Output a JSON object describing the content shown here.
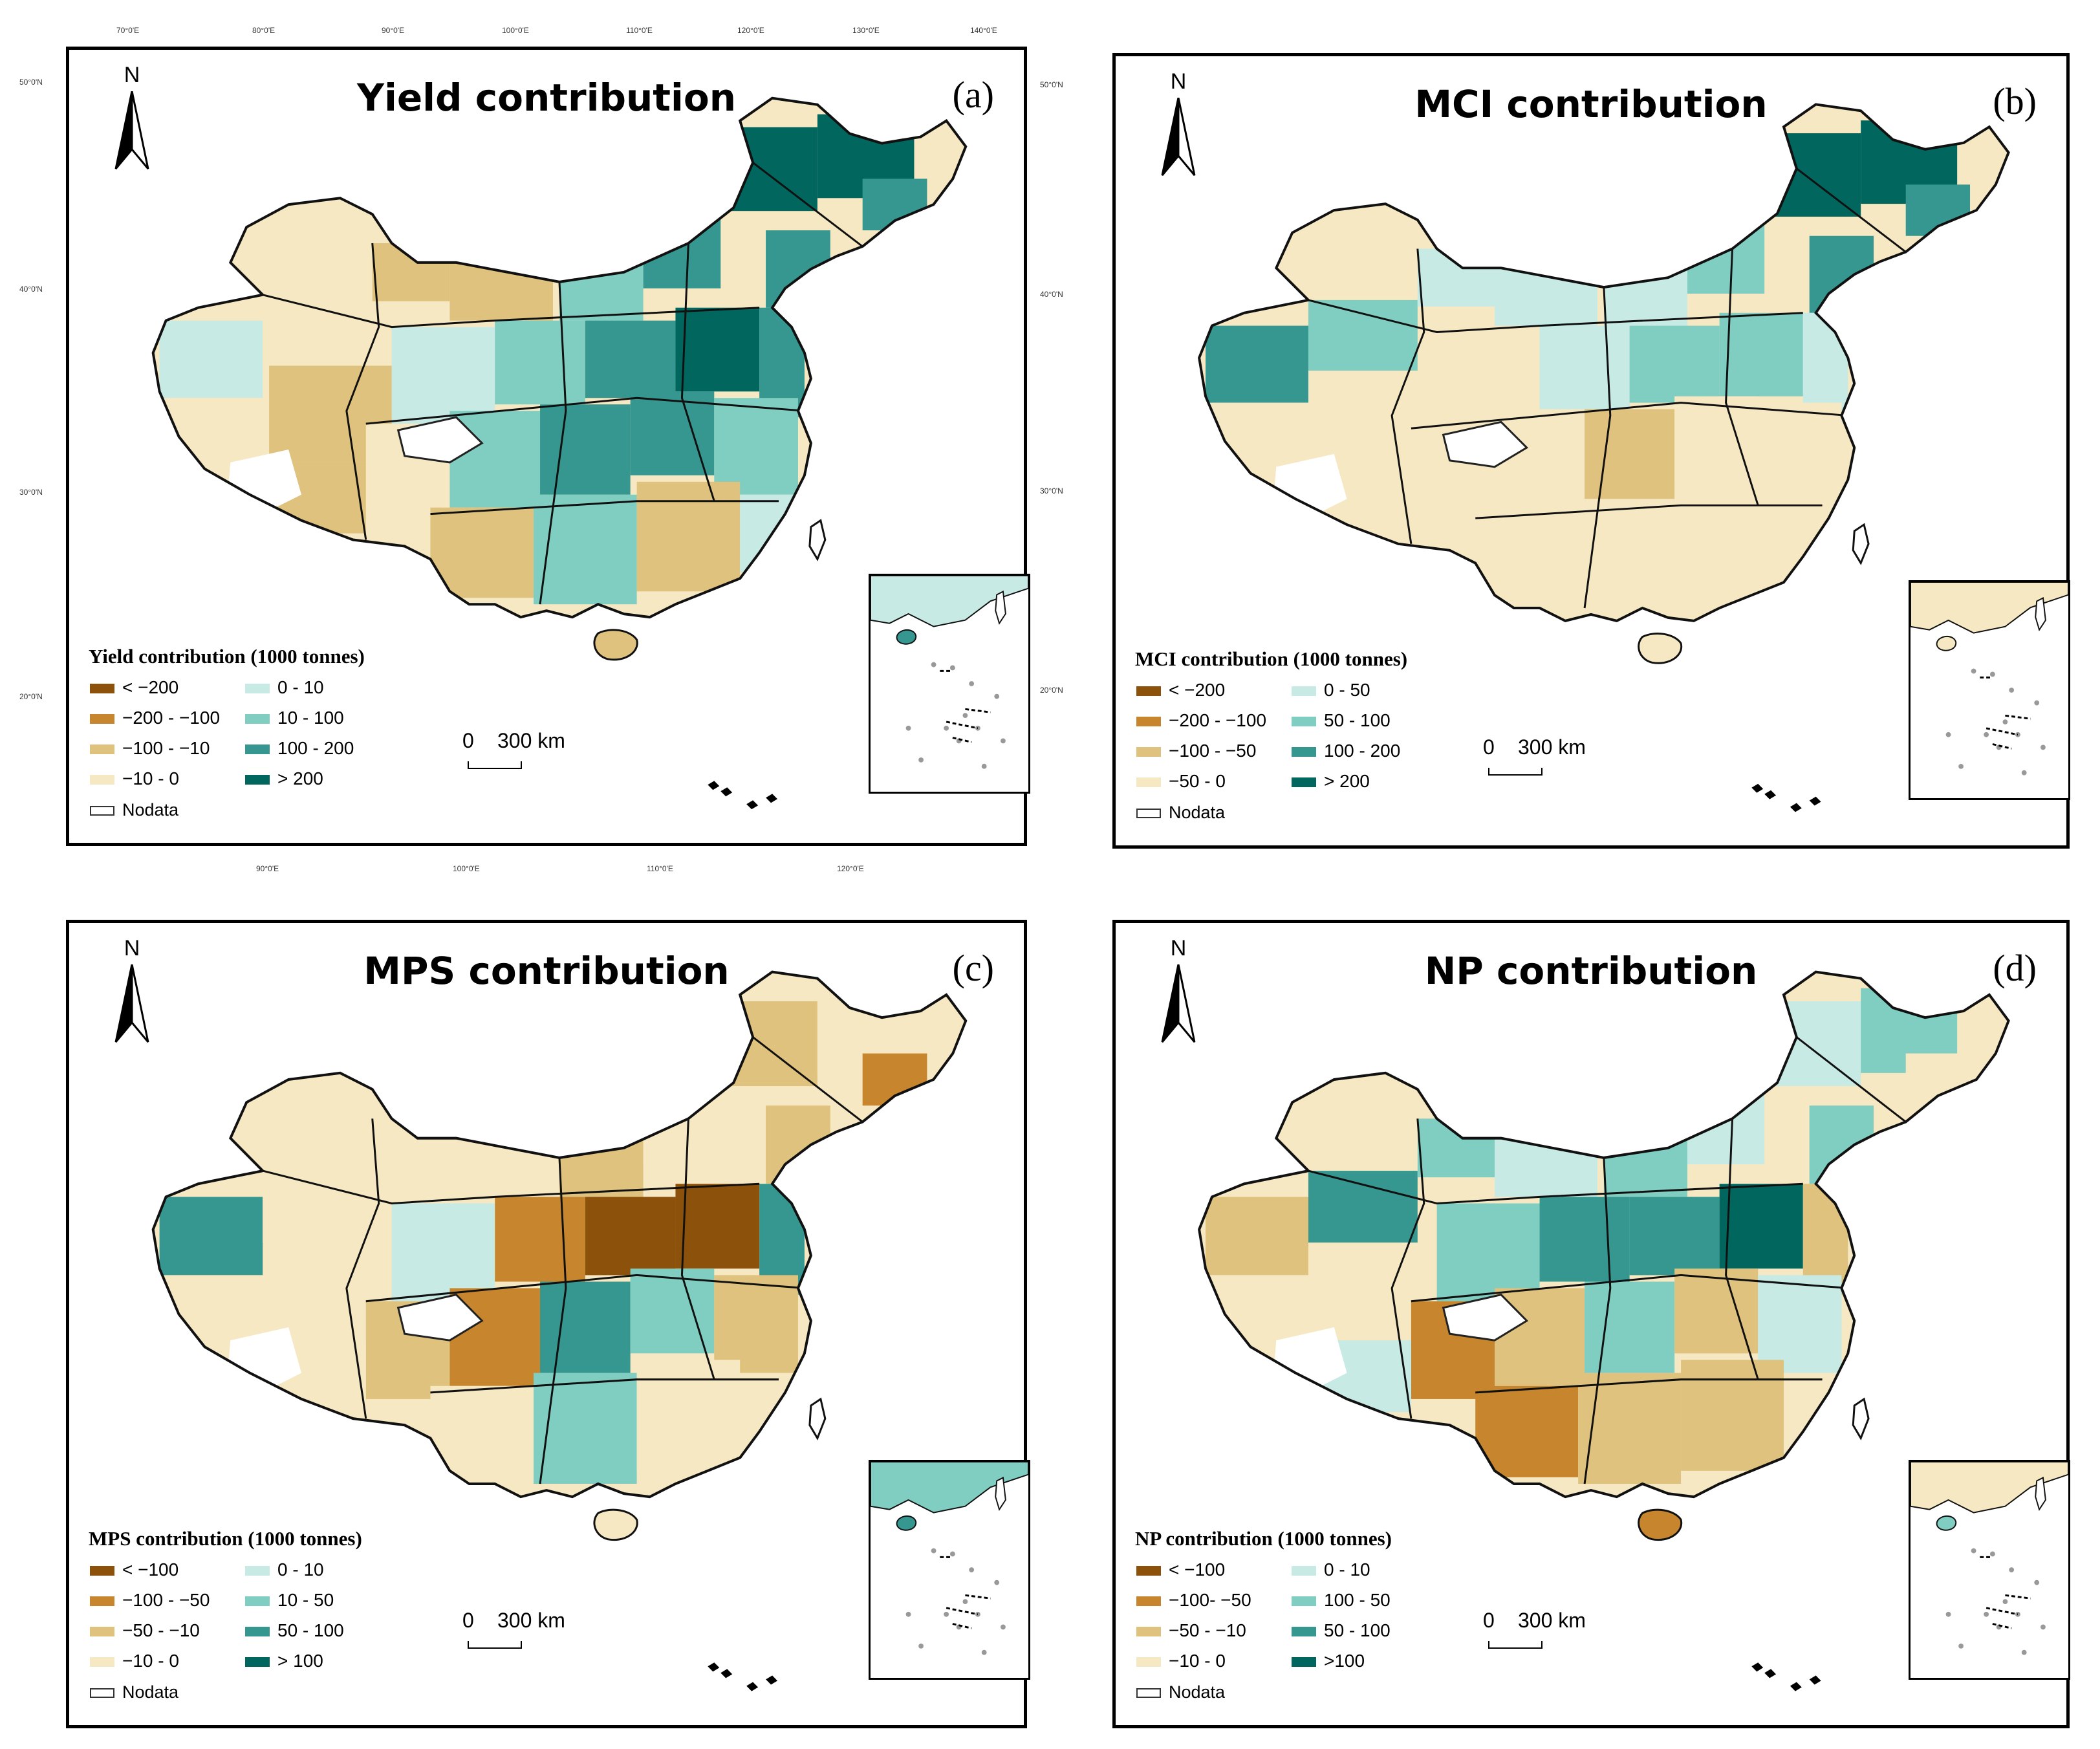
{
  "palette": {
    "brown_dark": "#8c510a",
    "brown_mid": "#c7862e",
    "tan": "#dfc27d",
    "beige": "#f6e8c3",
    "teal_light": "#c7eae5",
    "teal_mid": "#80cdc1",
    "teal": "#35978f",
    "teal_dark": "#01665e",
    "nodata": "#ffffff"
  },
  "common": {
    "north_letter": "N",
    "scale_zero": "0",
    "scale_distance": "300 km",
    "nodata_label": "Nodata"
  },
  "coords": {
    "top_lon": [
      "70°0'E",
      "80°0'E",
      "90°0'E",
      "100°0'E",
      "110°0'E",
      "120°0'E",
      "130°0'E",
      "140°0'E"
    ],
    "bottom_lon": [
      "90°0'E",
      "100°0'E",
      "110°0'E",
      "120°0'E"
    ],
    "left_lat": [
      "50°0'N",
      "40°0'N",
      "30°0'N",
      "20°0'N"
    ],
    "right_lat": [
      "50°0'N",
      "40°0'N",
      "30°0'N",
      "20°0'N"
    ]
  },
  "panels": [
    {
      "id": "a",
      "title": "Yield contribution",
      "tag": "(a)",
      "legend_title": "Yield contribution (1000 tonnes)",
      "legend_left": [
        {
          "label": "< −200",
          "color": "#8c510a"
        },
        {
          "label": "−200 - −100",
          "color": "#c7862e"
        },
        {
          "label": "−100 - −10",
          "color": "#dfc27d"
        },
        {
          "label": "−10 - 0",
          "color": "#f6e8c3"
        }
      ],
      "legend_right": [
        {
          "label": "0 - 10",
          "color": "#c7eae5"
        },
        {
          "label": "10 - 100",
          "color": "#80cdc1"
        },
        {
          "label": "100 - 200",
          "color": "#35978f"
        },
        {
          "label": "> 200",
          "color": "#01665e"
        }
      ]
    },
    {
      "id": "b",
      "title": "MCI contribution",
      "tag": "(b)",
      "legend_title": "MCI contribution (1000 tonnes)",
      "legend_left": [
        {
          "label": "< −200",
          "color": "#8c510a"
        },
        {
          "label": "−200 - −100",
          "color": "#c7862e"
        },
        {
          "label": "−100 - −50",
          "color": "#dfc27d"
        },
        {
          "label": "−50 - 0",
          "color": "#f6e8c3"
        }
      ],
      "legend_right": [
        {
          "label": "0 - 50",
          "color": "#c7eae5"
        },
        {
          "label": "50 - 100",
          "color": "#80cdc1"
        },
        {
          "label": "100 - 200",
          "color": "#35978f"
        },
        {
          "label": "> 200",
          "color": "#01665e"
        }
      ]
    },
    {
      "id": "c",
      "title": "MPS contribution",
      "tag": "(c)",
      "legend_title": "MPS contribution (1000 tonnes)",
      "legend_left": [
        {
          "label": "< −100",
          "color": "#8c510a"
        },
        {
          "label": "−100 - −50",
          "color": "#c7862e"
        },
        {
          "label": "−50 - −10",
          "color": "#dfc27d"
        },
        {
          "label": "−10 - 0",
          "color": "#f6e8c3"
        }
      ],
      "legend_right": [
        {
          "label": "0 - 10",
          "color": "#c7eae5"
        },
        {
          "label": "10 - 50",
          "color": "#80cdc1"
        },
        {
          "label": "50 - 100",
          "color": "#35978f"
        },
        {
          "label": "> 100",
          "color": "#01665e"
        }
      ]
    },
    {
      "id": "d",
      "title": "NP contribution",
      "tag": "(d)",
      "legend_title": "NP contribution (1000 tonnes)",
      "legend_left": [
        {
          "label": "< −100",
          "color": "#8c510a"
        },
        {
          "label": "−100- −50",
          "color": "#c7862e"
        },
        {
          "label": "−50 - −10",
          "color": "#dfc27d"
        },
        {
          "label": "−10 - 0",
          "color": "#f6e8c3"
        }
      ],
      "legend_right": [
        {
          "label": "0 - 10",
          "color": "#c7eae5"
        },
        {
          "label": "100 - 50",
          "color": "#80cdc1"
        },
        {
          "label": "50 - 100",
          "color": "#35978f"
        },
        {
          "label": ">100",
          "color": "#01665e"
        }
      ]
    }
  ]
}
